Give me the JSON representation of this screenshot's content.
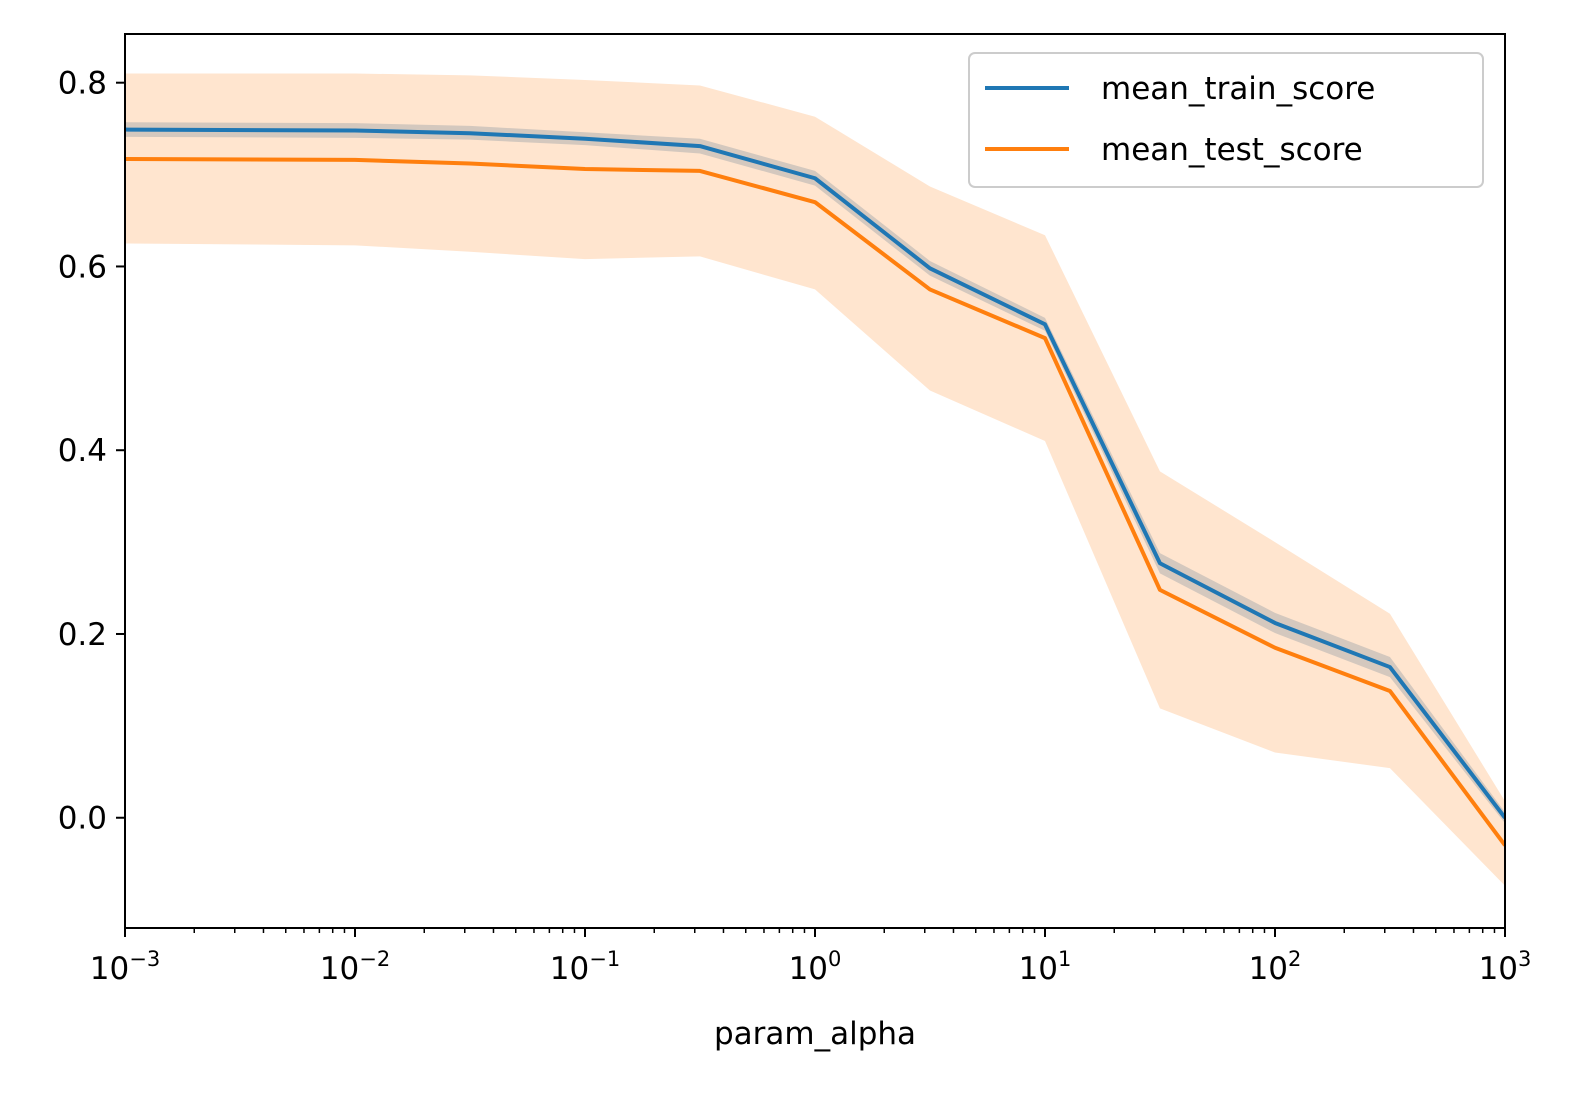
{
  "chart_data": {
    "type": "line",
    "xlabel": "param_alpha",
    "ylabel": "",
    "x_scale": "log",
    "xlim": [
      0.001,
      1000
    ],
    "ylim": [
      -0.12,
      0.853
    ],
    "x_ticks": [
      {
        "value": 0.001,
        "base": "10",
        "exp": "−3"
      },
      {
        "value": 0.01,
        "base": "10",
        "exp": "−2"
      },
      {
        "value": 0.1,
        "base": "10",
        "exp": "−1"
      },
      {
        "value": 1,
        "base": "10",
        "exp": "0"
      },
      {
        "value": 10,
        "base": "10",
        "exp": "1"
      },
      {
        "value": 100,
        "base": "10",
        "exp": "2"
      },
      {
        "value": 1000,
        "base": "10",
        "exp": "3"
      }
    ],
    "y_ticks": [
      {
        "value": 0.0,
        "label": "0.0"
      },
      {
        "value": 0.2,
        "label": "0.2"
      },
      {
        "value": 0.4,
        "label": "0.4"
      },
      {
        "value": 0.6,
        "label": "0.6"
      },
      {
        "value": 0.8,
        "label": "0.8"
      }
    ],
    "grid": false,
    "legend_position": "top-right",
    "x": [
      0.001,
      0.01,
      0.0316,
      0.1,
      0.316,
      1,
      3.16,
      10,
      31.6,
      100,
      316,
      1000
    ],
    "series": [
      {
        "name": "mean_train_score",
        "color": "#1f77b4",
        "band_color": "#b0b0b0",
        "values": [
          0.749,
          0.748,
          0.745,
          0.739,
          0.731,
          0.696,
          0.598,
          0.537,
          0.277,
          0.212,
          0.164,
          0.0
        ],
        "lower": [
          0.741,
          0.74,
          0.738,
          0.732,
          0.723,
          0.688,
          0.59,
          0.53,
          0.266,
          0.201,
          0.153,
          -0.006
        ],
        "upper": [
          0.757,
          0.756,
          0.753,
          0.746,
          0.739,
          0.704,
          0.606,
          0.544,
          0.288,
          0.223,
          0.175,
          0.006
        ]
      },
      {
        "name": "mean_test_score",
        "color": "#ff7f0e",
        "band_color": "#ffe5cf",
        "values": [
          0.717,
          0.716,
          0.712,
          0.706,
          0.704,
          0.67,
          0.575,
          0.522,
          0.248,
          0.185,
          0.138,
          -0.03
        ],
        "lower": [
          0.625,
          0.623,
          0.616,
          0.608,
          0.611,
          0.575,
          0.465,
          0.41,
          0.119,
          0.071,
          0.054,
          -0.074
        ],
        "upper": [
          0.81,
          0.81,
          0.808,
          0.803,
          0.797,
          0.763,
          0.687,
          0.634,
          0.377,
          0.3,
          0.222,
          0.018
        ]
      }
    ]
  }
}
